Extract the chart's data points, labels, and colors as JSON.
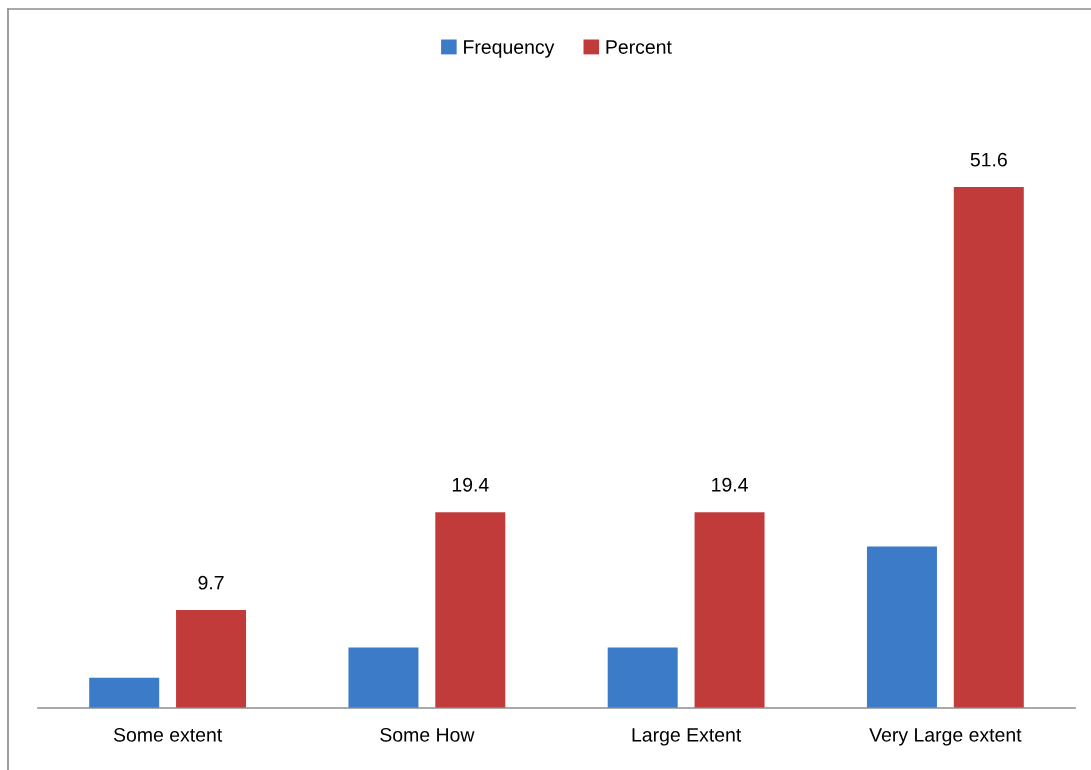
{
  "chart_data": {
    "type": "bar",
    "categories": [
      "Some extent",
      "Some How",
      "Large Extent",
      "Very Large extent"
    ],
    "series": [
      {
        "name": "Frequency",
        "color": "#3c7bc8",
        "values": [
          3,
          6,
          6,
          16
        ]
      },
      {
        "name": "Percent",
        "color": "#c23b3b",
        "values": [
          9.7,
          19.4,
          19.4,
          51.6
        ],
        "value_labels": [
          "9.7",
          "19.4",
          "19.4",
          "51.6"
        ]
      }
    ],
    "tick_labels": "x",
    "grid": false,
    "legend": "top"
  }
}
